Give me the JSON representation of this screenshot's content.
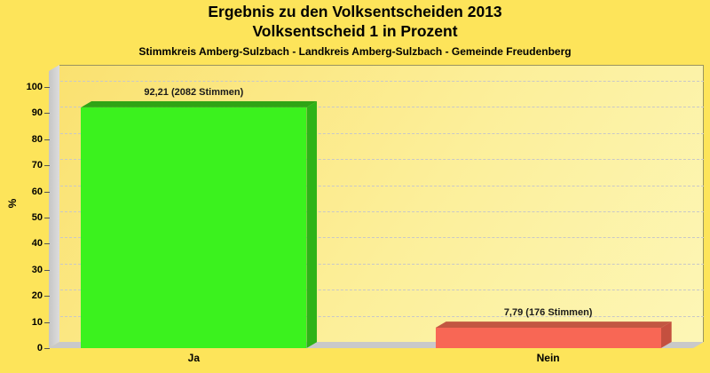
{
  "title": {
    "line1": "Ergebnis zu den Volksentscheiden 2013",
    "line2": "Volksentscheid 1 in Prozent",
    "subtitle": "Stimmkreis Amberg-Sulzbach - Landkreis Amberg-Sulzbach - Gemeinde Freudenberg"
  },
  "chart_data": {
    "type": "bar",
    "style": "3d-vertical-bars",
    "title": "Ergebnis zu den Volksentscheiden 2013",
    "subtitle2": "Volksentscheid 1 in Prozent",
    "subtitle3": "Stimmkreis Amberg-Sulzbach - Landkreis Amberg-Sulzbach - Gemeinde Freudenberg",
    "categories": [
      "Ja",
      "Nein"
    ],
    "values": [
      92.21,
      7.79
    ],
    "votes": [
      2082,
      176
    ],
    "bar_labels": [
      "92,21 (2082 Stimmen)",
      "7,79 (176 Stimmen)"
    ],
    "xlabel": "",
    "ylabel": "%",
    "ylim": [
      0,
      100
    ],
    "y_ticks": [
      0,
      10,
      20,
      30,
      40,
      50,
      60,
      70,
      80,
      90,
      100
    ],
    "grid": "horizontal-dashed",
    "legend": "none",
    "bar_colors": [
      {
        "front": "#3BF21E",
        "top": "#2FA415",
        "side": "#2EB318"
      },
      {
        "front": "#F86755",
        "top": "#C25742",
        "side": "#C4503F"
      }
    ]
  },
  "colors": {
    "page_background": "#FDE45A",
    "plot_border": "#9A945E",
    "wall": "#D4D4D4",
    "floor": "#C9C9C9",
    "gridline": "#C8C8C8",
    "tick_text": "#000000",
    "bar_label_text": "#1A1A1A"
  }
}
